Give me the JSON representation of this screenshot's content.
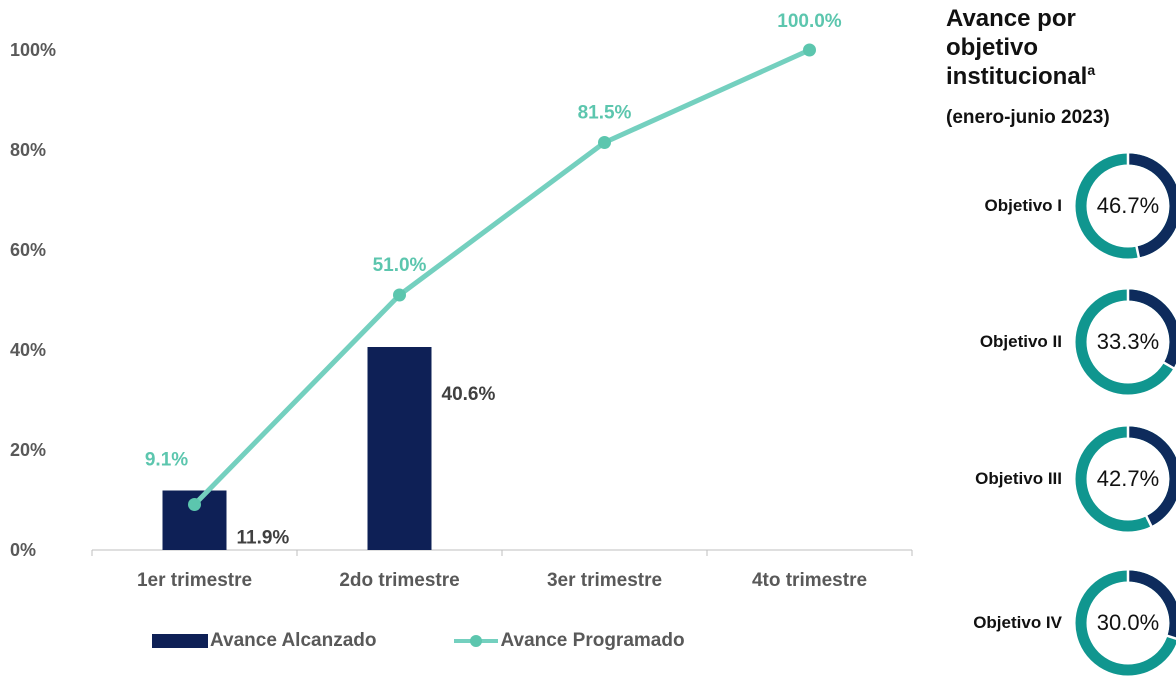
{
  "chart_data": {
    "type": "bar+line",
    "categories": [
      "1er trimestre",
      "2do trimestre",
      "3er trimestre",
      "4to trimestre"
    ],
    "yticks": [
      "0%",
      "20%",
      "40%",
      "60%",
      "80%",
      "100%"
    ],
    "ylim": [
      0,
      100
    ],
    "series": [
      {
        "name": "Avance Alcanzado",
        "type": "bar",
        "color": "#0E2056",
        "values": [
          11.9,
          40.6,
          null,
          null
        ],
        "labels": [
          "11.9%",
          "40.6%",
          "",
          ""
        ]
      },
      {
        "name": "Avance Programado",
        "type": "line",
        "color": "#74D0BF",
        "values": [
          9.1,
          51.0,
          81.5,
          100.0
        ],
        "labels": [
          "9.1%",
          "51.0%",
          "81.5%",
          "100.0%"
        ]
      }
    ],
    "grid": false,
    "legend_position": "bottom"
  },
  "sidebar": {
    "title_main": "Avance por objetivo institucional",
    "title_superscript": "a",
    "subtitle": "(enero-junio 2023)",
    "ring_colors": {
      "achieved": "#0E2B5C",
      "remaining": "#10968F"
    },
    "objectives": [
      {
        "label": "Objetivo I",
        "value": 46.7,
        "value_label": "46.7%"
      },
      {
        "label": "Objetivo II",
        "value": 33.3,
        "value_label": "33.3%"
      },
      {
        "label": "Objetivo III",
        "value": 42.7,
        "value_label": "42.7%"
      },
      {
        "label": "Objetivo IV",
        "value": 30.0,
        "value_label": "30.0%"
      }
    ]
  }
}
